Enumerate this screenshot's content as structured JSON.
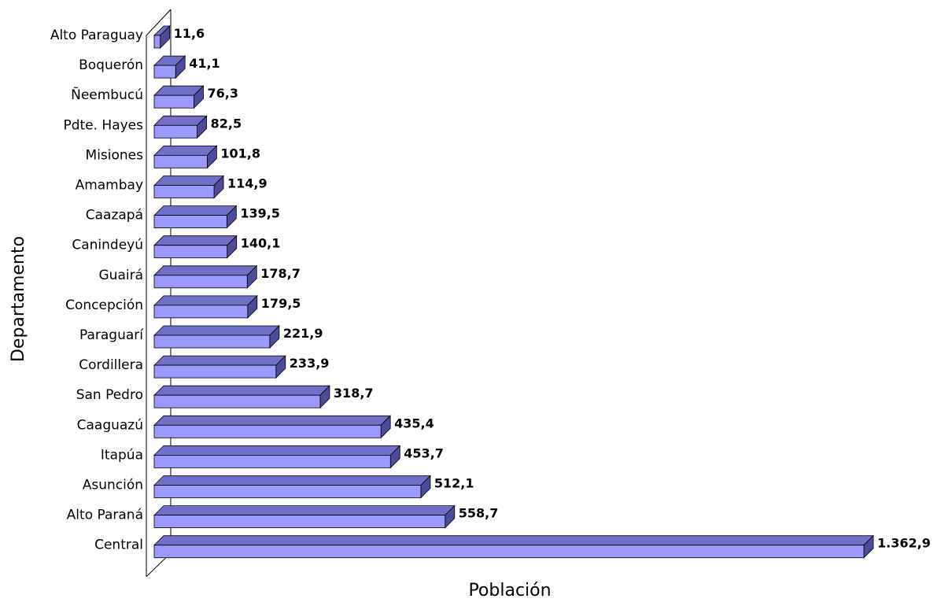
{
  "chart_data": {
    "type": "bar",
    "orientation": "horizontal",
    "style": "3d",
    "title": "",
    "xlabel": "Población",
    "ylabel": "Departamento",
    "categories": [
      "Alto Paraguay",
      "Boquerón",
      "Ñeembucú",
      "Pdte. Hayes",
      "Misiones",
      "Amambay",
      "Caazapá",
      "Canindeyú",
      "Guairá",
      "Concepción",
      "Paraguarí",
      "Cordillera",
      "San Pedro",
      "Caaguazú",
      "Itapúa",
      "Asunción",
      "Alto Paraná",
      "Central"
    ],
    "values": [
      11.6,
      41.1,
      76.3,
      82.5,
      101.8,
      114.9,
      139.5,
      140.1,
      178.7,
      179.5,
      221.9,
      233.9,
      318.7,
      435.4,
      453.7,
      512.1,
      558.7,
      1362.9
    ],
    "value_labels": [
      "11,6",
      "41,1",
      "76,3",
      "82,5",
      "101,8",
      "114,9",
      "139,5",
      "140,1",
      "178,7",
      "179,5",
      "221,9",
      "233,9",
      "318,7",
      "435,4",
      "453,7",
      "512,1",
      "558,7",
      "1.362,9"
    ],
    "grid": false,
    "legend": "none",
    "colors": {
      "bar_front": "#9999ff",
      "bar_top": "#7070c8",
      "bar_side": "#4c4c99",
      "bar_stroke": "#000000"
    }
  }
}
